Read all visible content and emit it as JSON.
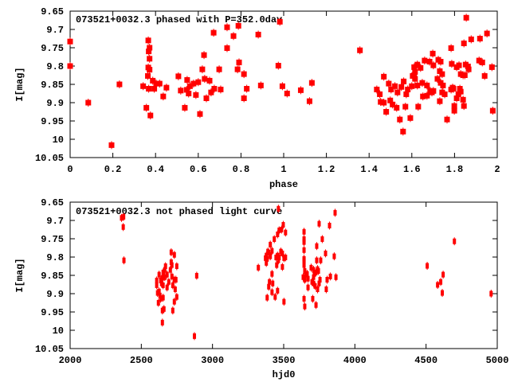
{
  "colors": {
    "marker": "#ff0000",
    "axis": "#000000"
  },
  "chart_data": [
    {
      "type": "scatter",
      "title": "073521+0032.3 phased with P=352.0day",
      "xlabel": "phase",
      "ylabel": "I[mag]",
      "xlim": [
        0,
        2
      ],
      "ylim": [
        9.65,
        10.05
      ],
      "y_inverted": true,
      "xticks": [
        "0",
        "0.2",
        "0.4",
        "0.6",
        "0.8",
        "1",
        "1.2",
        "1.4",
        "1.6",
        "1.8",
        "2"
      ],
      "yticks": [
        "9.65",
        "9.7",
        "9.75",
        "9.8",
        "9.85",
        "9.9",
        "9.95",
        "10",
        "10.05"
      ],
      "grid": false,
      "points": [
        [
          0.0,
          9.733
        ],
        [
          0.0,
          9.8
        ],
        [
          0.085,
          9.9
        ],
        [
          0.194,
          10.016
        ],
        [
          0.231,
          9.85
        ],
        [
          0.342,
          9.855
        ],
        [
          0.357,
          9.914
        ],
        [
          0.376,
          9.935
        ],
        [
          0.366,
          9.73
        ],
        [
          0.372,
          9.75
        ],
        [
          0.368,
          9.76
        ],
        [
          0.372,
          9.78
        ],
        [
          0.366,
          9.804
        ],
        [
          0.372,
          9.81
        ],
        [
          0.364,
          9.827
        ],
        [
          0.368,
          9.862
        ],
        [
          0.387,
          9.84
        ],
        [
          0.394,
          9.862
        ],
        [
          0.403,
          9.848
        ],
        [
          0.419,
          9.848
        ],
        [
          0.451,
          9.859
        ],
        [
          0.436,
          9.883
        ],
        [
          0.507,
          9.828
        ],
        [
          0.518,
          9.867
        ],
        [
          0.537,
          9.914
        ],
        [
          0.548,
          9.838
        ],
        [
          0.546,
          9.865
        ],
        [
          0.555,
          9.875
        ],
        [
          0.561,
          9.855
        ],
        [
          0.578,
          9.848
        ],
        [
          0.589,
          9.879
        ],
        [
          0.6,
          9.844
        ],
        [
          0.608,
          9.931
        ],
        [
          0.619,
          9.809
        ],
        [
          0.627,
          9.77
        ],
        [
          0.63,
          9.835
        ],
        [
          0.638,
          9.888
        ],
        [
          0.653,
          9.84
        ],
        [
          0.66,
          9.872
        ],
        [
          0.672,
          9.709
        ],
        [
          0.675,
          9.862
        ],
        [
          0.698,
          9.809
        ],
        [
          0.705,
          9.864
        ],
        [
          0.735,
          9.694
        ],
        [
          0.735,
          9.751
        ],
        [
          0.765,
          9.718
        ],
        [
          0.788,
          9.69
        ],
        [
          0.791,
          9.79
        ],
        [
          0.784,
          9.809
        ],
        [
          0.814,
          9.822
        ],
        [
          0.814,
          9.888
        ],
        [
          0.827,
          9.862
        ],
        [
          0.881,
          9.714
        ],
        [
          0.893,
          9.853
        ],
        [
          0.982,
          9.679
        ],
        [
          0.975,
          9.799
        ],
        [
          0.994,
          9.855
        ],
        [
          1.016,
          9.875
        ],
        [
          1.08,
          9.866
        ],
        [
          1.121,
          9.896
        ],
        [
          1.132,
          9.846
        ],
        [
          1.357,
          9.757
        ],
        [
          1.436,
          9.864
        ],
        [
          1.45,
          9.877
        ],
        [
          1.469,
          9.829
        ],
        [
          1.454,
          9.898
        ],
        [
          1.469,
          9.9
        ],
        [
          1.48,
          9.925
        ],
        [
          1.492,
          9.848
        ],
        [
          1.503,
          9.864
        ],
        [
          1.499,
          9.894
        ],
        [
          1.51,
          9.905
        ],
        [
          1.521,
          9.855
        ],
        [
          1.529,
          9.914
        ],
        [
          1.533,
          9.872
        ],
        [
          1.544,
          9.946
        ],
        [
          1.551,
          9.857
        ],
        [
          1.559,
          9.979
        ],
        [
          1.562,
          9.842
        ],
        [
          1.57,
          9.911
        ],
        [
          1.574,
          9.877
        ],
        [
          1.581,
          9.864
        ],
        [
          1.593,
          9.942
        ],
        [
          1.6,
          9.855
        ],
        [
          1.604,
          9.827
        ],
        [
          1.611,
          9.825
        ],
        [
          1.615,
          9.835
        ],
        [
          1.615,
          9.816
        ],
        [
          1.611,
          9.803
        ],
        [
          1.626,
          9.796
        ],
        [
          1.626,
          9.853
        ],
        [
          1.63,
          9.911
        ],
        [
          1.641,
          9.805
        ],
        [
          1.649,
          9.846
        ],
        [
          1.652,
          9.883
        ],
        [
          1.66,
          9.785
        ],
        [
          1.671,
          9.853
        ],
        [
          1.671,
          9.881
        ],
        [
          1.683,
          9.788
        ],
        [
          1.686,
          9.868
        ],
        [
          1.694,
          9.872
        ],
        [
          1.701,
          9.868
        ],
        [
          1.698,
          9.766
        ],
        [
          1.701,
          9.798
        ],
        [
          1.72,
          9.835
        ],
        [
          1.724,
          9.783
        ],
        [
          1.731,
          9.814
        ],
        [
          1.735,
          9.788
        ],
        [
          1.731,
          9.896
        ],
        [
          1.735,
          9.846
        ],
        [
          1.742,
          9.822
        ],
        [
          1.742,
          9.872
        ],
        [
          1.746,
          9.853
        ],
        [
          1.754,
          9.877
        ],
        [
          1.765,
          9.946
        ],
        [
          1.784,
          9.751
        ],
        [
          1.787,
          9.794
        ],
        [
          1.784,
          9.864
        ],
        [
          1.791,
          9.859
        ],
        [
          1.795,
          9.862
        ],
        [
          1.799,
          9.909
        ],
        [
          1.799,
          9.922
        ],
        [
          1.81,
          9.803
        ],
        [
          1.81,
          9.888
        ],
        [
          1.818,
          9.877
        ],
        [
          1.821,
          9.798
        ],
        [
          1.825,
          9.862
        ],
        [
          1.829,
          9.87
        ],
        [
          1.829,
          9.822
        ],
        [
          1.84,
          9.892
        ],
        [
          1.844,
          9.909
        ],
        [
          1.84,
          9.825
        ],
        [
          1.844,
          9.738
        ],
        [
          1.848,
          9.825
        ],
        [
          1.852,
          9.796
        ],
        [
          1.855,
          9.668
        ],
        [
          1.863,
          9.801
        ],
        [
          1.866,
          9.809
        ],
        [
          1.878,
          9.727
        ],
        [
          1.915,
          9.785
        ],
        [
          1.919,
          9.725
        ],
        [
          1.93,
          9.79
        ],
        [
          1.941,
          9.827
        ],
        [
          1.952,
          9.711
        ],
        [
          1.975,
          9.803
        ],
        [
          1.979,
          9.922
        ]
      ]
    },
    {
      "type": "scatter",
      "title": "073521+0032.3 not phased light curve",
      "xlabel": "hjd0",
      "ylabel": "I[mag]",
      "xlim": [
        2000,
        5000
      ],
      "ylim": [
        9.65,
        10.05
      ],
      "y_inverted": true,
      "xticks": [
        "2000",
        "2500",
        "3000",
        "3500",
        "4000",
        "4500",
        "5000"
      ],
      "yticks": [
        "9.65",
        "9.7",
        "9.75",
        "9.8",
        "9.85",
        "9.9",
        "9.95",
        "10",
        "10.05"
      ],
      "grid": false,
      "points": [
        [
          2361,
          9.693
        ],
        [
          2376,
          9.69
        ],
        [
          2373,
          9.718
        ],
        [
          2378,
          9.809
        ],
        [
          2889,
          9.851
        ],
        [
          2873,
          10.016
        ],
        [
          2710,
          9.787
        ],
        [
          2732,
          9.794
        ],
        [
          2710,
          9.814
        ],
        [
          2715,
          9.822
        ],
        [
          2749,
          9.825
        ],
        [
          2670,
          9.825
        ],
        [
          2665,
          9.835
        ],
        [
          2704,
          9.835
        ],
        [
          2653,
          9.842
        ],
        [
          2625,
          9.848
        ],
        [
          2681,
          9.848
        ],
        [
          2648,
          9.857
        ],
        [
          2665,
          9.855
        ],
        [
          2715,
          9.853
        ],
        [
          2608,
          9.864
        ],
        [
          2636,
          9.864
        ],
        [
          2732,
          9.862
        ],
        [
          2743,
          9.862
        ],
        [
          2693,
          9.868
        ],
        [
          2642,
          9.872
        ],
        [
          2653,
          9.877
        ],
        [
          2608,
          9.877
        ],
        [
          2721,
          9.877
        ],
        [
          2681,
          9.883
        ],
        [
          2738,
          9.888
        ],
        [
          2614,
          9.898
        ],
        [
          2625,
          9.894
        ],
        [
          2631,
          9.905
        ],
        [
          2636,
          9.914
        ],
        [
          2653,
          9.911
        ],
        [
          2749,
          9.909
        ],
        [
          2620,
          9.925
        ],
        [
          2732,
          9.922
        ],
        [
          2659,
          9.942
        ],
        [
          2648,
          9.946
        ],
        [
          2721,
          9.946
        ],
        [
          2648,
          9.979
        ],
        [
          3463,
          9.668
        ],
        [
          3497,
          9.712
        ],
        [
          3485,
          9.725
        ],
        [
          3468,
          9.727
        ],
        [
          3513,
          9.733
        ],
        [
          3457,
          9.738
        ],
        [
          3434,
          9.751
        ],
        [
          3406,
          9.766
        ],
        [
          3418,
          9.783
        ],
        [
          3389,
          9.785
        ],
        [
          3395,
          9.788
        ],
        [
          3480,
          9.785
        ],
        [
          3491,
          9.79
        ],
        [
          3378,
          9.796
        ],
        [
          3406,
          9.798
        ],
        [
          3457,
          9.796
        ],
        [
          3446,
          9.801
        ],
        [
          3468,
          9.801
        ],
        [
          3513,
          9.801
        ],
        [
          3502,
          9.803
        ],
        [
          3372,
          9.803
        ],
        [
          3384,
          9.805
        ],
        [
          3463,
          9.809
        ],
        [
          3378,
          9.816
        ],
        [
          3451,
          9.822
        ],
        [
          3491,
          9.827
        ],
        [
          3322,
          9.829
        ],
        [
          3418,
          9.846
        ],
        [
          3400,
          9.868
        ],
        [
          3423,
          9.872
        ],
        [
          3395,
          9.881
        ],
        [
          3457,
          9.892
        ],
        [
          3418,
          9.896
        ],
        [
          3440,
          9.909
        ],
        [
          3384,
          9.911
        ],
        [
          3502,
          9.922
        ],
        [
          3861,
          9.679
        ],
        [
          3749,
          9.709
        ],
        [
          3822,
          9.714
        ],
        [
          3643,
          9.731
        ],
        [
          3643,
          9.751
        ],
        [
          3643,
          9.759
        ],
        [
          3771,
          9.751
        ],
        [
          3732,
          9.77
        ],
        [
          3643,
          9.781
        ],
        [
          3794,
          9.79
        ],
        [
          3855,
          9.798
        ],
        [
          3643,
          9.805
        ],
        [
          3643,
          9.809
        ],
        [
          3732,
          9.809
        ],
        [
          3760,
          9.809
        ],
        [
          3643,
          9.822
        ],
        [
          3693,
          9.829
        ],
        [
          3648,
          9.838
        ],
        [
          3710,
          9.835
        ],
        [
          3738,
          9.833
        ],
        [
          3744,
          9.838
        ],
        [
          3727,
          9.842
        ],
        [
          3665,
          9.846
        ],
        [
          3715,
          9.846
        ],
        [
          3653,
          9.848
        ],
        [
          3710,
          9.855
        ],
        [
          3637,
          9.855
        ],
        [
          3828,
          9.853
        ],
        [
          3867,
          9.855
        ],
        [
          3671,
          9.859
        ],
        [
          3648,
          9.862
        ],
        [
          3755,
          9.862
        ],
        [
          3805,
          9.862
        ],
        [
          3699,
          9.868
        ],
        [
          3710,
          9.872
        ],
        [
          3749,
          9.872
        ],
        [
          3721,
          9.879
        ],
        [
          3671,
          9.883
        ],
        [
          3738,
          9.888
        ],
        [
          3799,
          9.888
        ],
        [
          3643,
          9.914
        ],
        [
          3704,
          9.914
        ],
        [
          3727,
          9.931
        ],
        [
          3648,
          9.935
        ],
        [
          4508,
          9.824
        ],
        [
          4620,
          9.848
        ],
        [
          4603,
          9.868
        ],
        [
          4581,
          9.876
        ],
        [
          4614,
          9.898
        ],
        [
          4699,
          9.757
        ],
        [
          4957,
          9.9
        ]
      ]
    }
  ]
}
